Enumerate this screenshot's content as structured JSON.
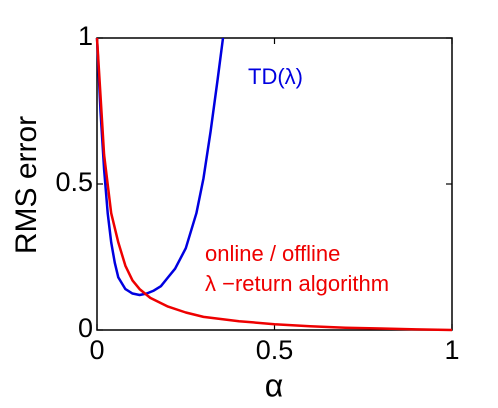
{
  "chart_data": {
    "type": "line",
    "xlabel": "α",
    "ylabel": "RMS error",
    "xlim": [
      0,
      1
    ],
    "ylim": [
      0,
      1
    ],
    "xticks": [
      0,
      0.5,
      1
    ],
    "yticks": [
      0,
      0.5,
      1
    ],
    "series": [
      {
        "color": "#0000e0",
        "x": [
          0,
          0.01,
          0.02,
          0.03,
          0.04,
          0.05,
          0.06,
          0.08,
          0.1,
          0.12,
          0.14,
          0.16,
          0.18,
          0.2,
          0.22,
          0.25,
          0.28,
          0.3,
          0.32,
          0.34,
          0.355
        ],
        "values": [
          1.0,
          0.75,
          0.55,
          0.4,
          0.3,
          0.23,
          0.18,
          0.14,
          0.125,
          0.12,
          0.125,
          0.135,
          0.15,
          0.18,
          0.21,
          0.28,
          0.4,
          0.52,
          0.68,
          0.86,
          1.0
        ]
      },
      {
        "color": "#ee0000",
        "x": [
          0,
          0.02,
          0.04,
          0.06,
          0.08,
          0.1,
          0.12,
          0.15,
          0.2,
          0.25,
          0.3,
          0.4,
          0.5,
          0.6,
          0.7,
          0.8,
          0.9,
          1.0
        ],
        "values": [
          1.0,
          0.6,
          0.4,
          0.3,
          0.22,
          0.17,
          0.14,
          0.11,
          0.08,
          0.06,
          0.045,
          0.03,
          0.02,
          0.013,
          0.008,
          0.005,
          0.002,
          0
        ]
      }
    ],
    "annotations": [
      {
        "text": "TD(λ)",
        "color": "#0000e0"
      },
      {
        "text": "online / offline",
        "color": "#ee0000"
      },
      {
        "text": "λ −return algorithm",
        "color": "#ee0000"
      }
    ]
  }
}
